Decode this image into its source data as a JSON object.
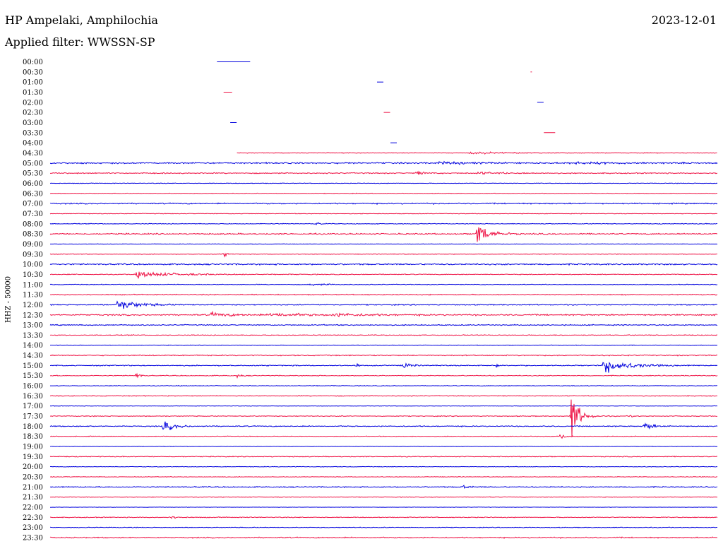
{
  "header": {
    "station": "HP Ampelaki, Amphilochia",
    "date": "2023-12-01",
    "filter": "Applied filter: WWSSN-SP",
    "channel_label": "HHZ - 50000"
  },
  "colors": {
    "blue": "#0000dd",
    "red": "#ee1144"
  },
  "chart_data": {
    "type": "line",
    "title": "HP Ampelaki, Amphilochia",
    "ylabel": "HHZ - 50000",
    "rows": [
      {
        "label": "00:00",
        "color": "blue",
        "start": 0.25,
        "end": 0.3,
        "noise": 0,
        "events": []
      },
      {
        "label": "00:30",
        "color": "red",
        "start": 0.72,
        "end": 0.723,
        "noise": 0,
        "events": []
      },
      {
        "label": "01:00",
        "color": "blue",
        "start": 0.49,
        "end": 0.5,
        "noise": 0,
        "events": []
      },
      {
        "label": "01:30",
        "color": "red",
        "start": 0.26,
        "end": 0.273,
        "noise": 0,
        "events": []
      },
      {
        "label": "02:00",
        "color": "blue",
        "start": 0.73,
        "end": 0.74,
        "noise": 0,
        "events": []
      },
      {
        "label": "02:30",
        "color": "red",
        "start": 0.5,
        "end": 0.51,
        "noise": 0,
        "events": []
      },
      {
        "label": "03:00",
        "color": "blue",
        "start": 0.27,
        "end": 0.28,
        "noise": 0,
        "events": []
      },
      {
        "label": "03:30",
        "color": "red",
        "start": 0.74,
        "end": 0.757,
        "noise": 0,
        "events": []
      },
      {
        "label": "04:00",
        "color": "blue",
        "start": 0.51,
        "end": 0.52,
        "noise": 0,
        "events": []
      },
      {
        "label": "04:30",
        "color": "red",
        "start": 0.28,
        "end": 1.0,
        "noise": 0.6,
        "events": [
          [
            0.63,
            2,
            0.05
          ]
        ]
      },
      {
        "label": "05:00",
        "color": "blue",
        "start": 0,
        "end": 1.0,
        "noise": 1.3,
        "events": [
          [
            0.58,
            2,
            0.06
          ],
          [
            0.78,
            1.5,
            0.08
          ]
        ]
      },
      {
        "label": "05:30",
        "color": "red",
        "start": 0,
        "end": 1.0,
        "noise": 1,
        "events": [
          [
            0.55,
            4,
            0.01
          ],
          [
            0.64,
            2,
            0.04
          ]
        ]
      },
      {
        "label": "06:00",
        "color": "blue",
        "start": 0,
        "end": 1.0,
        "noise": 0.6,
        "events": []
      },
      {
        "label": "06:30",
        "color": "red",
        "start": 0,
        "end": 1.0,
        "noise": 0.6,
        "events": []
      },
      {
        "label": "07:00",
        "color": "blue",
        "start": 0,
        "end": 1.0,
        "noise": 1.2,
        "events": []
      },
      {
        "label": "07:30",
        "color": "red",
        "start": 0,
        "end": 1.0,
        "noise": 0.6,
        "events": []
      },
      {
        "label": "08:00",
        "color": "blue",
        "start": 0,
        "end": 1.0,
        "noise": 0.7,
        "events": [
          [
            0.4,
            3,
            0.005
          ]
        ]
      },
      {
        "label": "08:30",
        "color": "red",
        "start": 0,
        "end": 1.0,
        "noise": 1.2,
        "events": [
          [
            0.64,
            24,
            0.015
          ]
        ]
      },
      {
        "label": "09:00",
        "color": "blue",
        "start": 0,
        "end": 1.0,
        "noise": 0.5,
        "events": []
      },
      {
        "label": "09:30",
        "color": "red",
        "start": 0,
        "end": 1.0,
        "noise": 0.6,
        "events": [
          [
            0.26,
            5,
            0.005
          ]
        ]
      },
      {
        "label": "10:00",
        "color": "blue",
        "start": 0,
        "end": 1.0,
        "noise": 1.3,
        "events": []
      },
      {
        "label": "10:30",
        "color": "red",
        "start": 0,
        "end": 1.0,
        "noise": 0.8,
        "events": [
          [
            0.13,
            6,
            0.05
          ]
        ]
      },
      {
        "label": "11:00",
        "color": "blue",
        "start": 0,
        "end": 1.0,
        "noise": 0.7,
        "events": [
          [
            0.39,
            2,
            0.02
          ]
        ]
      },
      {
        "label": "11:30",
        "color": "red",
        "start": 0,
        "end": 1.0,
        "noise": 1.0,
        "events": []
      },
      {
        "label": "12:00",
        "color": "blue",
        "start": 0,
        "end": 1.0,
        "noise": 1.0,
        "events": [
          [
            0.1,
            10,
            0.03
          ]
        ]
      },
      {
        "label": "12:30",
        "color": "red",
        "start": 0,
        "end": 1.0,
        "noise": 1.3,
        "events": [
          [
            0.24,
            4,
            0.03
          ],
          [
            0.33,
            4,
            0.04
          ],
          [
            0.42,
            3,
            0.05
          ]
        ]
      },
      {
        "label": "13:00",
        "color": "blue",
        "start": 0,
        "end": 1.0,
        "noise": 1.0,
        "events": []
      },
      {
        "label": "13:30",
        "color": "red",
        "start": 0,
        "end": 1.0,
        "noise": 0.8,
        "events": []
      },
      {
        "label": "14:00",
        "color": "blue",
        "start": 0,
        "end": 1.0,
        "noise": 0.6,
        "events": []
      },
      {
        "label": "14:30",
        "color": "red",
        "start": 0,
        "end": 1.0,
        "noise": 1.0,
        "events": []
      },
      {
        "label": "15:00",
        "color": "blue",
        "start": 0,
        "end": 1.0,
        "noise": 1.0,
        "events": [
          [
            0.46,
            3,
            0.004
          ],
          [
            0.53,
            7,
            0.008
          ],
          [
            0.67,
            3,
            0.005
          ],
          [
            0.83,
            16,
            0.03
          ]
        ]
      },
      {
        "label": "15:30",
        "color": "red",
        "start": 0,
        "end": 1.0,
        "noise": 0.8,
        "events": [
          [
            0.13,
            7,
            0.004
          ],
          [
            0.28,
            3,
            0.006
          ]
        ]
      },
      {
        "label": "16:00",
        "color": "blue",
        "start": 0,
        "end": 1.0,
        "noise": 0.7,
        "events": []
      },
      {
        "label": "16:30",
        "color": "red",
        "start": 0,
        "end": 1.0,
        "noise": 0.8,
        "events": []
      },
      {
        "label": "17:00",
        "color": "blue",
        "start": 0,
        "end": 1.0,
        "noise": 0.4,
        "events": []
      },
      {
        "label": "17:30",
        "color": "red",
        "start": 0,
        "end": 1.0,
        "noise": 0.8,
        "events": [
          [
            0.78,
            58,
            0.01
          ],
          [
            0.87,
            3,
            0.005
          ]
        ]
      },
      {
        "label": "18:00",
        "color": "blue",
        "start": 0,
        "end": 1.0,
        "noise": 1.0,
        "events": [
          [
            0.17,
            10,
            0.015
          ],
          [
            0.89,
            10,
            0.01
          ]
        ]
      },
      {
        "label": "18:30",
        "color": "red",
        "start": 0,
        "end": 1.0,
        "noise": 0.7,
        "events": [
          [
            0.765,
            5,
            0.008
          ]
        ]
      },
      {
        "label": "19:00",
        "color": "blue",
        "start": 0,
        "end": 1.0,
        "noise": 0.5,
        "events": []
      },
      {
        "label": "19:30",
        "color": "red",
        "start": 0,
        "end": 1.0,
        "noise": 0.8,
        "events": []
      },
      {
        "label": "20:00",
        "color": "blue",
        "start": 0,
        "end": 1.0,
        "noise": 0.6,
        "events": []
      },
      {
        "label": "20:30",
        "color": "red",
        "start": 0,
        "end": 1.0,
        "noise": 0.6,
        "events": []
      },
      {
        "label": "21:00",
        "color": "blue",
        "start": 0,
        "end": 1.0,
        "noise": 1.0,
        "events": [
          [
            0.62,
            4,
            0.006
          ]
        ]
      },
      {
        "label": "21:30",
        "color": "red",
        "start": 0,
        "end": 1.0,
        "noise": 0.6,
        "events": []
      },
      {
        "label": "22:00",
        "color": "blue",
        "start": 0,
        "end": 1.0,
        "noise": 0.4,
        "events": []
      },
      {
        "label": "22:30",
        "color": "red",
        "start": 0,
        "end": 1.0,
        "noise": 0.8,
        "events": [
          [
            0.18,
            3,
            0.01
          ]
        ]
      },
      {
        "label": "23:00",
        "color": "blue",
        "start": 0,
        "end": 1.0,
        "noise": 0.7,
        "events": []
      },
      {
        "label": "23:30",
        "color": "red",
        "start": 0,
        "end": 1.0,
        "noise": 1.1,
        "events": []
      }
    ]
  }
}
